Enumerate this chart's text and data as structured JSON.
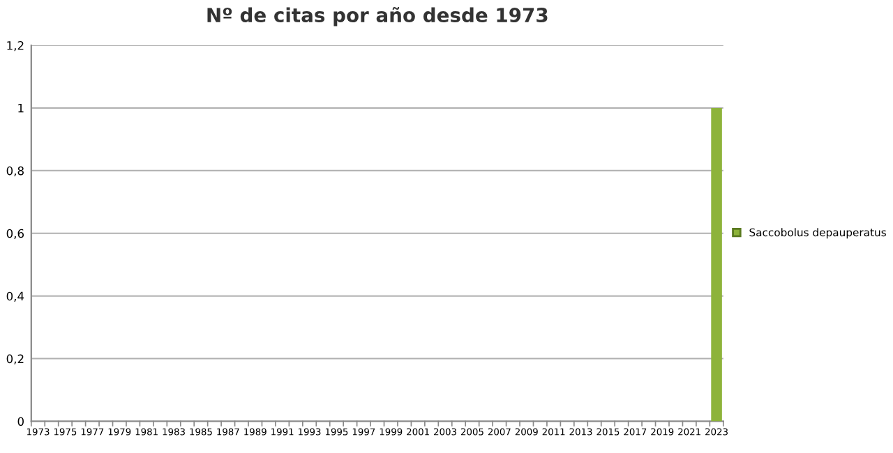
{
  "chart_data": {
    "type": "bar",
    "title": "Nº de citas por año desde 1973",
    "categories": [
      "1973",
      null,
      "1975",
      null,
      "1977",
      null,
      "1979",
      null,
      "1981",
      null,
      "1983",
      null,
      "1985",
      null,
      "1987",
      null,
      "1989",
      null,
      "1991",
      null,
      "1993",
      null,
      "1995",
      null,
      "1997",
      null,
      "1999",
      null,
      "2001",
      null,
      "2003",
      null,
      "2005",
      null,
      "2007",
      null,
      "2009",
      null,
      "2011",
      null,
      "2013",
      null,
      "2015",
      null,
      "2017",
      null,
      "2019",
      null,
      "2021",
      null,
      "2023"
    ],
    "series": [
      {
        "name": "Saccobolus depauperatus",
        "color": "#8db33a",
        "values": [
          0,
          0,
          0,
          0,
          0,
          0,
          0,
          0,
          0,
          0,
          0,
          0,
          0,
          0,
          0,
          0,
          0,
          0,
          0,
          0,
          0,
          0,
          0,
          0,
          0,
          0,
          0,
          0,
          0,
          0,
          0,
          0,
          0,
          0,
          0,
          0,
          0,
          0,
          0,
          0,
          0,
          0,
          0,
          0,
          0,
          0,
          0,
          0,
          0,
          0,
          1
        ]
      }
    ],
    "ylim": [
      0,
      1.2
    ],
    "yticks": [
      0,
      {
        "value": 0.2,
        "label": "0,2"
      },
      {
        "value": 0.4,
        "label": "0,4"
      },
      {
        "value": 0.6,
        "label": "0,6"
      },
      {
        "value": 0.8,
        "label": "0,8"
      },
      1,
      {
        "value": 1.2,
        "label": "1,2"
      }
    ],
    "grid": "y",
    "legend": "right"
  }
}
